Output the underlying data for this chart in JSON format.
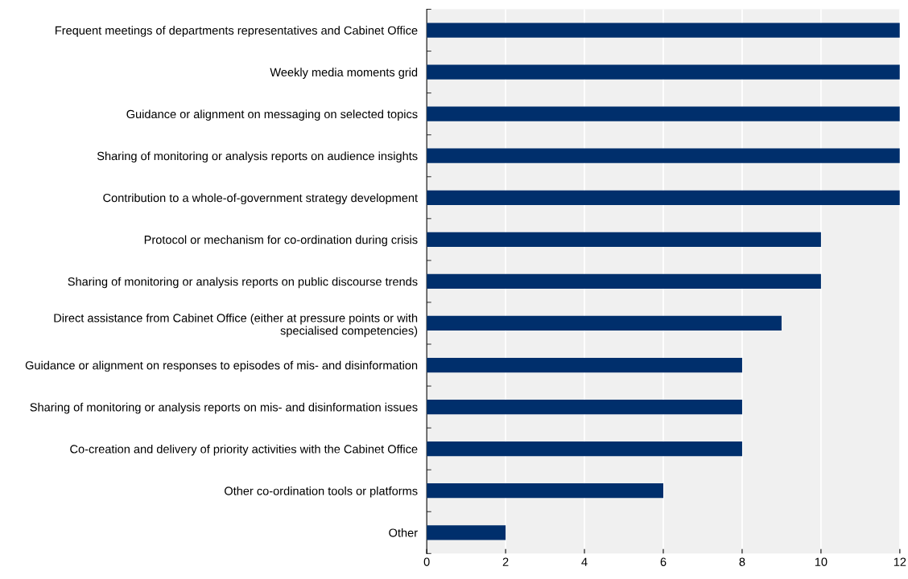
{
  "chart_data": {
    "type": "bar",
    "orientation": "horizontal",
    "categories": [
      "Frequent meetings of departments representatives and Cabinet Office",
      "Weekly media moments grid",
      "Guidance or alignment on messaging on selected topics",
      "Sharing of monitoring or analysis reports on audience insights",
      "Contribution to a whole-of-government strategy development",
      "Protocol or mechanism for co-ordination during crisis",
      "Sharing of monitoring or analysis reports on public discourse trends",
      "Direct assistance from Cabinet Office (either at pressure points or with\nspecialised competencies)",
      "Guidance or alignment on responses to episodes of mis- and disinformation",
      "Sharing of monitoring or analysis reports on mis- and disinformation issues",
      "Co-creation and delivery of priority activities with the Cabinet Office",
      "Other co-ordination tools or platforms",
      "Other"
    ],
    "values": [
      12,
      12,
      12,
      12,
      12,
      10,
      10,
      9,
      8,
      8,
      8,
      6,
      2
    ],
    "color": "#002f6c",
    "xlim": [
      0,
      12
    ],
    "xticks": [
      0,
      2,
      4,
      6,
      8,
      10,
      12
    ],
    "grid": "x"
  }
}
